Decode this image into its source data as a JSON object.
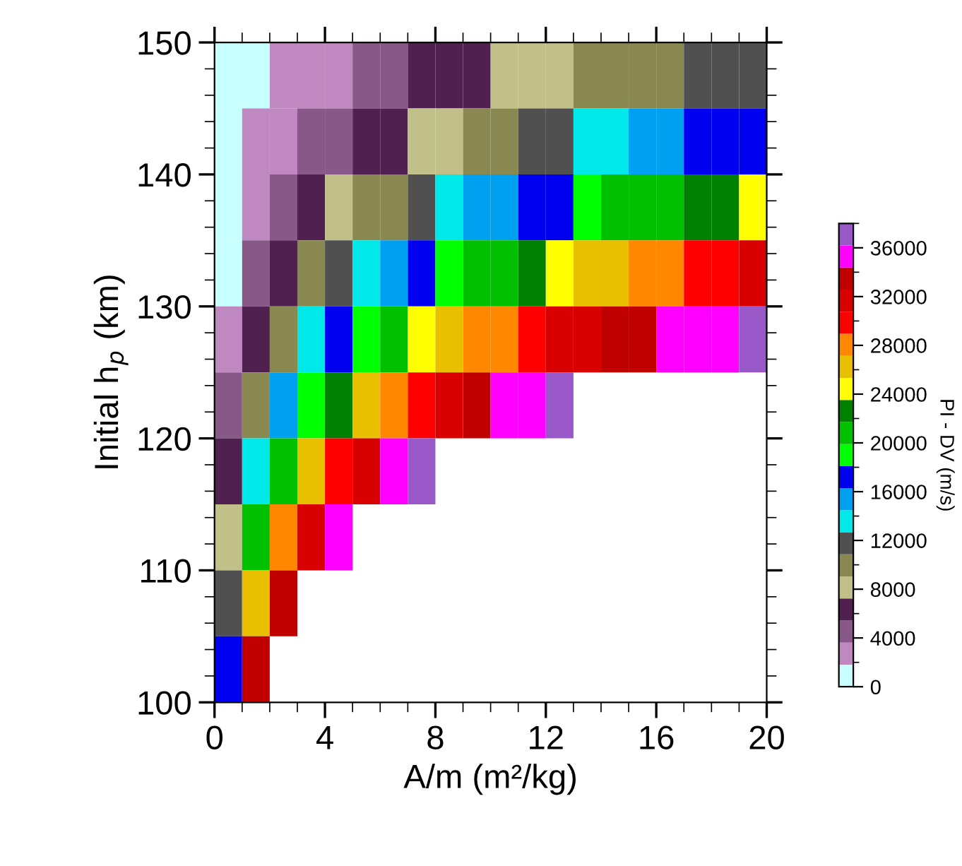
{
  "chart_data": {
    "type": "heatmap",
    "xlabel": "A/m (m²/kg)",
    "ylabel": "Initial h$_{p}$ (km)",
    "clabel": "PI - DV (m/s)",
    "x": [
      0.5,
      1.5,
      2.5,
      3.5,
      4.5,
      5.5,
      6.5,
      7.5,
      8.5,
      9.5,
      10.5,
      11.5,
      12.5,
      13.5,
      14.5,
      15.5,
      16.5,
      17.5,
      18.5,
      19.5
    ],
    "y": [
      147.5,
      142.5,
      137.5,
      132.5,
      127.5,
      122.5,
      117.5,
      112.5,
      107.5,
      102.5
    ],
    "xlim": [
      0,
      20
    ],
    "xticks": [
      0,
      4,
      8,
      12,
      16,
      20
    ],
    "ylim": [
      100,
      150
    ],
    "yticks": [
      100,
      110,
      120,
      130,
      140,
      150
    ],
    "clim": [
      0,
      38000
    ],
    "cticks": [
      0,
      4000,
      8000,
      12000,
      16000,
      20000,
      24000,
      28000,
      32000,
      36000
    ],
    "colors": [
      "#c8ffff",
      "#c088c0",
      "#885888",
      "#502050",
      "#c0c088",
      "#888850",
      "#505050",
      "#00e8e8",
      "#00a0f0",
      "#0000f0",
      "#00ff00",
      "#00c000",
      "#008000",
      "#ffff00",
      "#e8c000",
      "#ff8800",
      "#ff0000",
      "#d80000",
      "#c00000",
      "#ff00ff",
      "#9858c8"
    ],
    "cells": [
      [
        900,
        900,
        2700,
        2700,
        2700,
        4500,
        4500,
        6300,
        6300,
        6300,
        8100,
        8100,
        8100,
        9900,
        9900,
        9900,
        9900,
        11800,
        11800,
        11800
      ],
      [
        900,
        2700,
        2700,
        4500,
        4500,
        6300,
        6300,
        8100,
        8100,
        9900,
        9900,
        11800,
        11800,
        13600,
        13600,
        15400,
        15400,
        17200,
        17200,
        17200
      ],
      [
        900,
        2700,
        4500,
        6300,
        8100,
        9900,
        9900,
        11800,
        13600,
        15400,
        15400,
        17200,
        17200,
        19000,
        20800,
        20800,
        20800,
        22600,
        22600,
        24400
      ],
      [
        900,
        4500,
        6300,
        9900,
        11800,
        13600,
        15400,
        17200,
        19000,
        20800,
        20800,
        22600,
        24400,
        26200,
        26200,
        28000,
        28000,
        29900,
        29900,
        31700
      ],
      [
        2700,
        6300,
        9900,
        13600,
        17200,
        19000,
        20800,
        24400,
        26200,
        28000,
        28000,
        29900,
        31700,
        31700,
        33500,
        33500,
        35300,
        35300,
        35300,
        37100
      ],
      [
        4500,
        9900,
        15400,
        19000,
        22600,
        26200,
        28000,
        29900,
        31700,
        33500,
        35300,
        35300,
        37100,
        null,
        null,
        null,
        null,
        null,
        null,
        null
      ],
      [
        6300,
        13600,
        20800,
        26200,
        29900,
        31700,
        35300,
        37100,
        null,
        null,
        null,
        null,
        null,
        null,
        null,
        null,
        null,
        null,
        null,
        null
      ],
      [
        8100,
        20800,
        28000,
        31700,
        35300,
        null,
        null,
        null,
        null,
        null,
        null,
        null,
        null,
        null,
        null,
        null,
        null,
        null,
        null,
        null
      ],
      [
        11800,
        26200,
        33500,
        null,
        null,
        null,
        null,
        null,
        null,
        null,
        null,
        null,
        null,
        null,
        null,
        null,
        null,
        null,
        null,
        null
      ],
      [
        17200,
        33500,
        null,
        null,
        null,
        null,
        null,
        null,
        null,
        null,
        null,
        null,
        null,
        null,
        null,
        null,
        null,
        null,
        null,
        null
      ]
    ]
  }
}
